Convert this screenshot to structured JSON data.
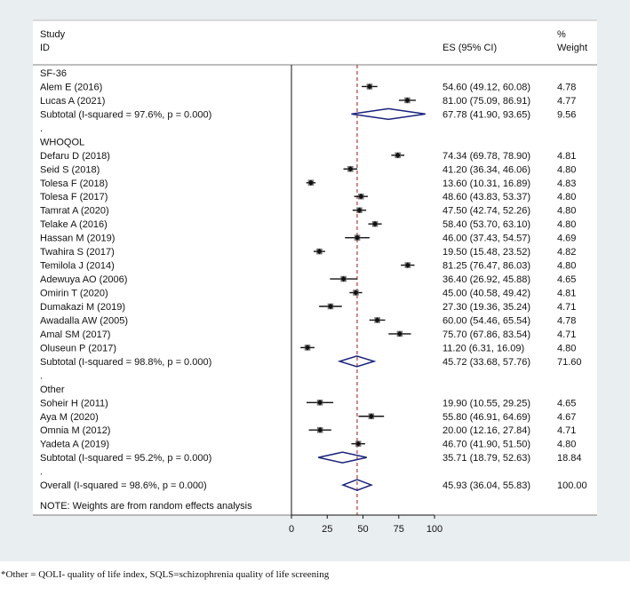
{
  "chart_data": {
    "type": "forest",
    "headers": {
      "study_line1": "Study",
      "study_line2": "ID",
      "es": "ES (95% CI)",
      "weight_line1": "%",
      "weight_line2": "Weight"
    },
    "xlim": [
      0,
      100
    ],
    "x_ticks": [
      "0",
      "25",
      "50",
      "75",
      "100"
    ],
    "reference_line": 45.93,
    "note": "NOTE: Weights are from random effects analysis",
    "rows": [
      {
        "kind": "group",
        "label": "SF-36"
      },
      {
        "kind": "study",
        "label": "Alem E (2016)",
        "es": 54.6,
        "lo": 49.12,
        "hi": 60.08,
        "ci_text": "54.60 (49.12, 60.08)",
        "weight": "4.78"
      },
      {
        "kind": "study",
        "label": "Lucas A (2021)",
        "es": 81.0,
        "lo": 75.09,
        "hi": 86.91,
        "ci_text": "81.00 (75.09, 86.91)",
        "weight": "4.77"
      },
      {
        "kind": "subtotal",
        "label": "Subtotal  (I-squared = 97.6%, p = 0.000)",
        "es": 67.78,
        "lo": 41.9,
        "hi": 93.65,
        "ci_text": "67.78 (41.90, 93.65)",
        "weight": "9.56"
      },
      {
        "kind": "dot",
        "label": "."
      },
      {
        "kind": "group",
        "label": "WHOQOL"
      },
      {
        "kind": "study",
        "label": "Defaru D (2018)",
        "es": 74.34,
        "lo": 69.78,
        "hi": 78.9,
        "ci_text": "74.34 (69.78, 78.90)",
        "weight": "4.81"
      },
      {
        "kind": "study",
        "label": "Seid S (2018)",
        "es": 41.2,
        "lo": 36.34,
        "hi": 46.06,
        "ci_text": "41.20 (36.34, 46.06)",
        "weight": "4.80"
      },
      {
        "kind": "study",
        "label": "Tolesa F (2018)",
        "es": 13.6,
        "lo": 10.31,
        "hi": 16.89,
        "ci_text": "13.60 (10.31, 16.89)",
        "weight": "4.83"
      },
      {
        "kind": "study",
        "label": "Tolesa F (2017)",
        "es": 48.6,
        "lo": 43.83,
        "hi": 53.37,
        "ci_text": "48.60 (43.83, 53.37)",
        "weight": "4.80"
      },
      {
        "kind": "study",
        "label": "Tamrat A (2020)",
        "es": 47.5,
        "lo": 42.74,
        "hi": 52.26,
        "ci_text": "47.50 (42.74, 52.26)",
        "weight": "4.80"
      },
      {
        "kind": "study",
        "label": "Telake A (2016)",
        "es": 58.4,
        "lo": 53.7,
        "hi": 63.1,
        "ci_text": "58.40 (53.70, 63.10)",
        "weight": "4.80"
      },
      {
        "kind": "study",
        "label": "Hassan M (2019)",
        "es": 46.0,
        "lo": 37.43,
        "hi": 54.57,
        "ci_text": "46.00 (37.43, 54.57)",
        "weight": "4.69"
      },
      {
        "kind": "study",
        "label": "Twahira S (2017)",
        "es": 19.5,
        "lo": 15.48,
        "hi": 23.52,
        "ci_text": "19.50 (15.48, 23.52)",
        "weight": "4.82"
      },
      {
        "kind": "study",
        "label": "Temilola J (2014)",
        "es": 81.25,
        "lo": 76.47,
        "hi": 86.03,
        "ci_text": "81.25 (76.47, 86.03)",
        "weight": "4.80"
      },
      {
        "kind": "study",
        "label": "Adewuya AO (2006)",
        "es": 36.4,
        "lo": 26.92,
        "hi": 45.88,
        "ci_text": "36.40 (26.92, 45.88)",
        "weight": "4.65"
      },
      {
        "kind": "study",
        "label": "Omirin T (2020)",
        "es": 45.0,
        "lo": 40.58,
        "hi": 49.42,
        "ci_text": "45.00 (40.58, 49.42)",
        "weight": "4.81"
      },
      {
        "kind": "study",
        "label": "Dumakazi M (2019)",
        "es": 27.3,
        "lo": 19.36,
        "hi": 35.24,
        "ci_text": "27.30 (19.36, 35.24)",
        "weight": "4.71"
      },
      {
        "kind": "study",
        "label": "Awadalla AW (2005)",
        "es": 60.0,
        "lo": 54.46,
        "hi": 65.54,
        "ci_text": "60.00 (54.46, 65.54)",
        "weight": "4.78"
      },
      {
        "kind": "study",
        "label": "Amal SM (2017)",
        "es": 75.7,
        "lo": 67.86,
        "hi": 83.54,
        "ci_text": "75.70 (67.86, 83.54)",
        "weight": "4.71"
      },
      {
        "kind": "study",
        "label": "Oluseun P (2017)",
        "es": 11.2,
        "lo": 6.31,
        "hi": 16.09,
        "ci_text": "11.20 (6.31, 16.09)",
        "weight": "4.80"
      },
      {
        "kind": "subtotal",
        "label": "Subtotal  (I-squared = 98.8%, p = 0.000)",
        "es": 45.72,
        "lo": 33.68,
        "hi": 57.76,
        "ci_text": "45.72 (33.68, 57.76)",
        "weight": "71.60"
      },
      {
        "kind": "dot",
        "label": "."
      },
      {
        "kind": "group",
        "label": "Other"
      },
      {
        "kind": "study",
        "label": "Soheir H (2011)",
        "es": 19.9,
        "lo": 10.55,
        "hi": 29.25,
        "ci_text": "19.90 (10.55, 29.25)",
        "weight": "4.65"
      },
      {
        "kind": "study",
        "label": "Aya M (2020)",
        "es": 55.8,
        "lo": 46.91,
        "hi": 64.69,
        "ci_text": "55.80 (46.91, 64.69)",
        "weight": "4.67"
      },
      {
        "kind": "study",
        "label": "Omnia M (2012)",
        "es": 20.0,
        "lo": 12.16,
        "hi": 27.84,
        "ci_text": "20.00 (12.16, 27.84)",
        "weight": "4.71"
      },
      {
        "kind": "study",
        "label": "Yadeta A (2019)",
        "es": 46.7,
        "lo": 41.9,
        "hi": 51.5,
        "ci_text": "46.70 (41.90, 51.50)",
        "weight": "4.80"
      },
      {
        "kind": "subtotal",
        "label": "Subtotal  (I-squared = 95.2%, p = 0.000)",
        "es": 35.71,
        "lo": 18.79,
        "hi": 52.63,
        "ci_text": "35.71 (18.79, 52.63)",
        "weight": "18.84"
      },
      {
        "kind": "dot",
        "label": "."
      },
      {
        "kind": "overall",
        "label": "Overall  (I-squared = 98.6%, p = 0.000)",
        "es": 45.93,
        "lo": 36.04,
        "hi": 55.83,
        "ci_text": "45.93 (36.04, 55.83)",
        "weight": "100.00"
      }
    ]
  },
  "colors": {
    "panel_background": "#e9eef1",
    "plot_background": "#ffffff",
    "diamond": "#1a237e",
    "reference_line": "#b23a3a",
    "marker": "#111111"
  },
  "footnote": "*Other = QOLI- quality of life index, SQLS=schizophrenia quality of life screening"
}
